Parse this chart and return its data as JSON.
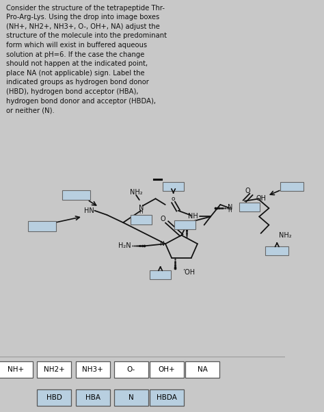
{
  "title_text": "Consider the structure of the tetrapeptide Thr-\nPro-Arg-Lys. Using the drop into image boxes\n(NH+, NH2+, NH3+, O-, OH+, NA) adjust the\nstructure of the molecule into the predominant\nform which will exist in buffered aqueous\nsolution at pH=6. If the case the change\nshould not happen at the indicated point,\nplace NA (not applicable) sign. Label the\nindicated groups as hydrogen bond donor\n(HBD), hydrogen bond acceptor (HBA),\nhydrogen bond donor and acceptor (HBDA),\nor neither (N).",
  "bg_color": "#c8c8c8",
  "text_bg": "#f5f5f5",
  "mol_bg": "#e0e0e0",
  "box_color": "#b8cfe0",
  "box_ec": "#666666",
  "toolbar_bg": "#f0f0f0",
  "toolbar_labels_row1": [
    "NH+",
    "NH2+",
    "NH3+",
    "O-",
    "OH+",
    "NA"
  ],
  "toolbar_labels_row2": [
    "HBD",
    "HBA",
    "N",
    "HBDA"
  ],
  "figsize": [
    4.74,
    6.02
  ],
  "dpi": 100
}
